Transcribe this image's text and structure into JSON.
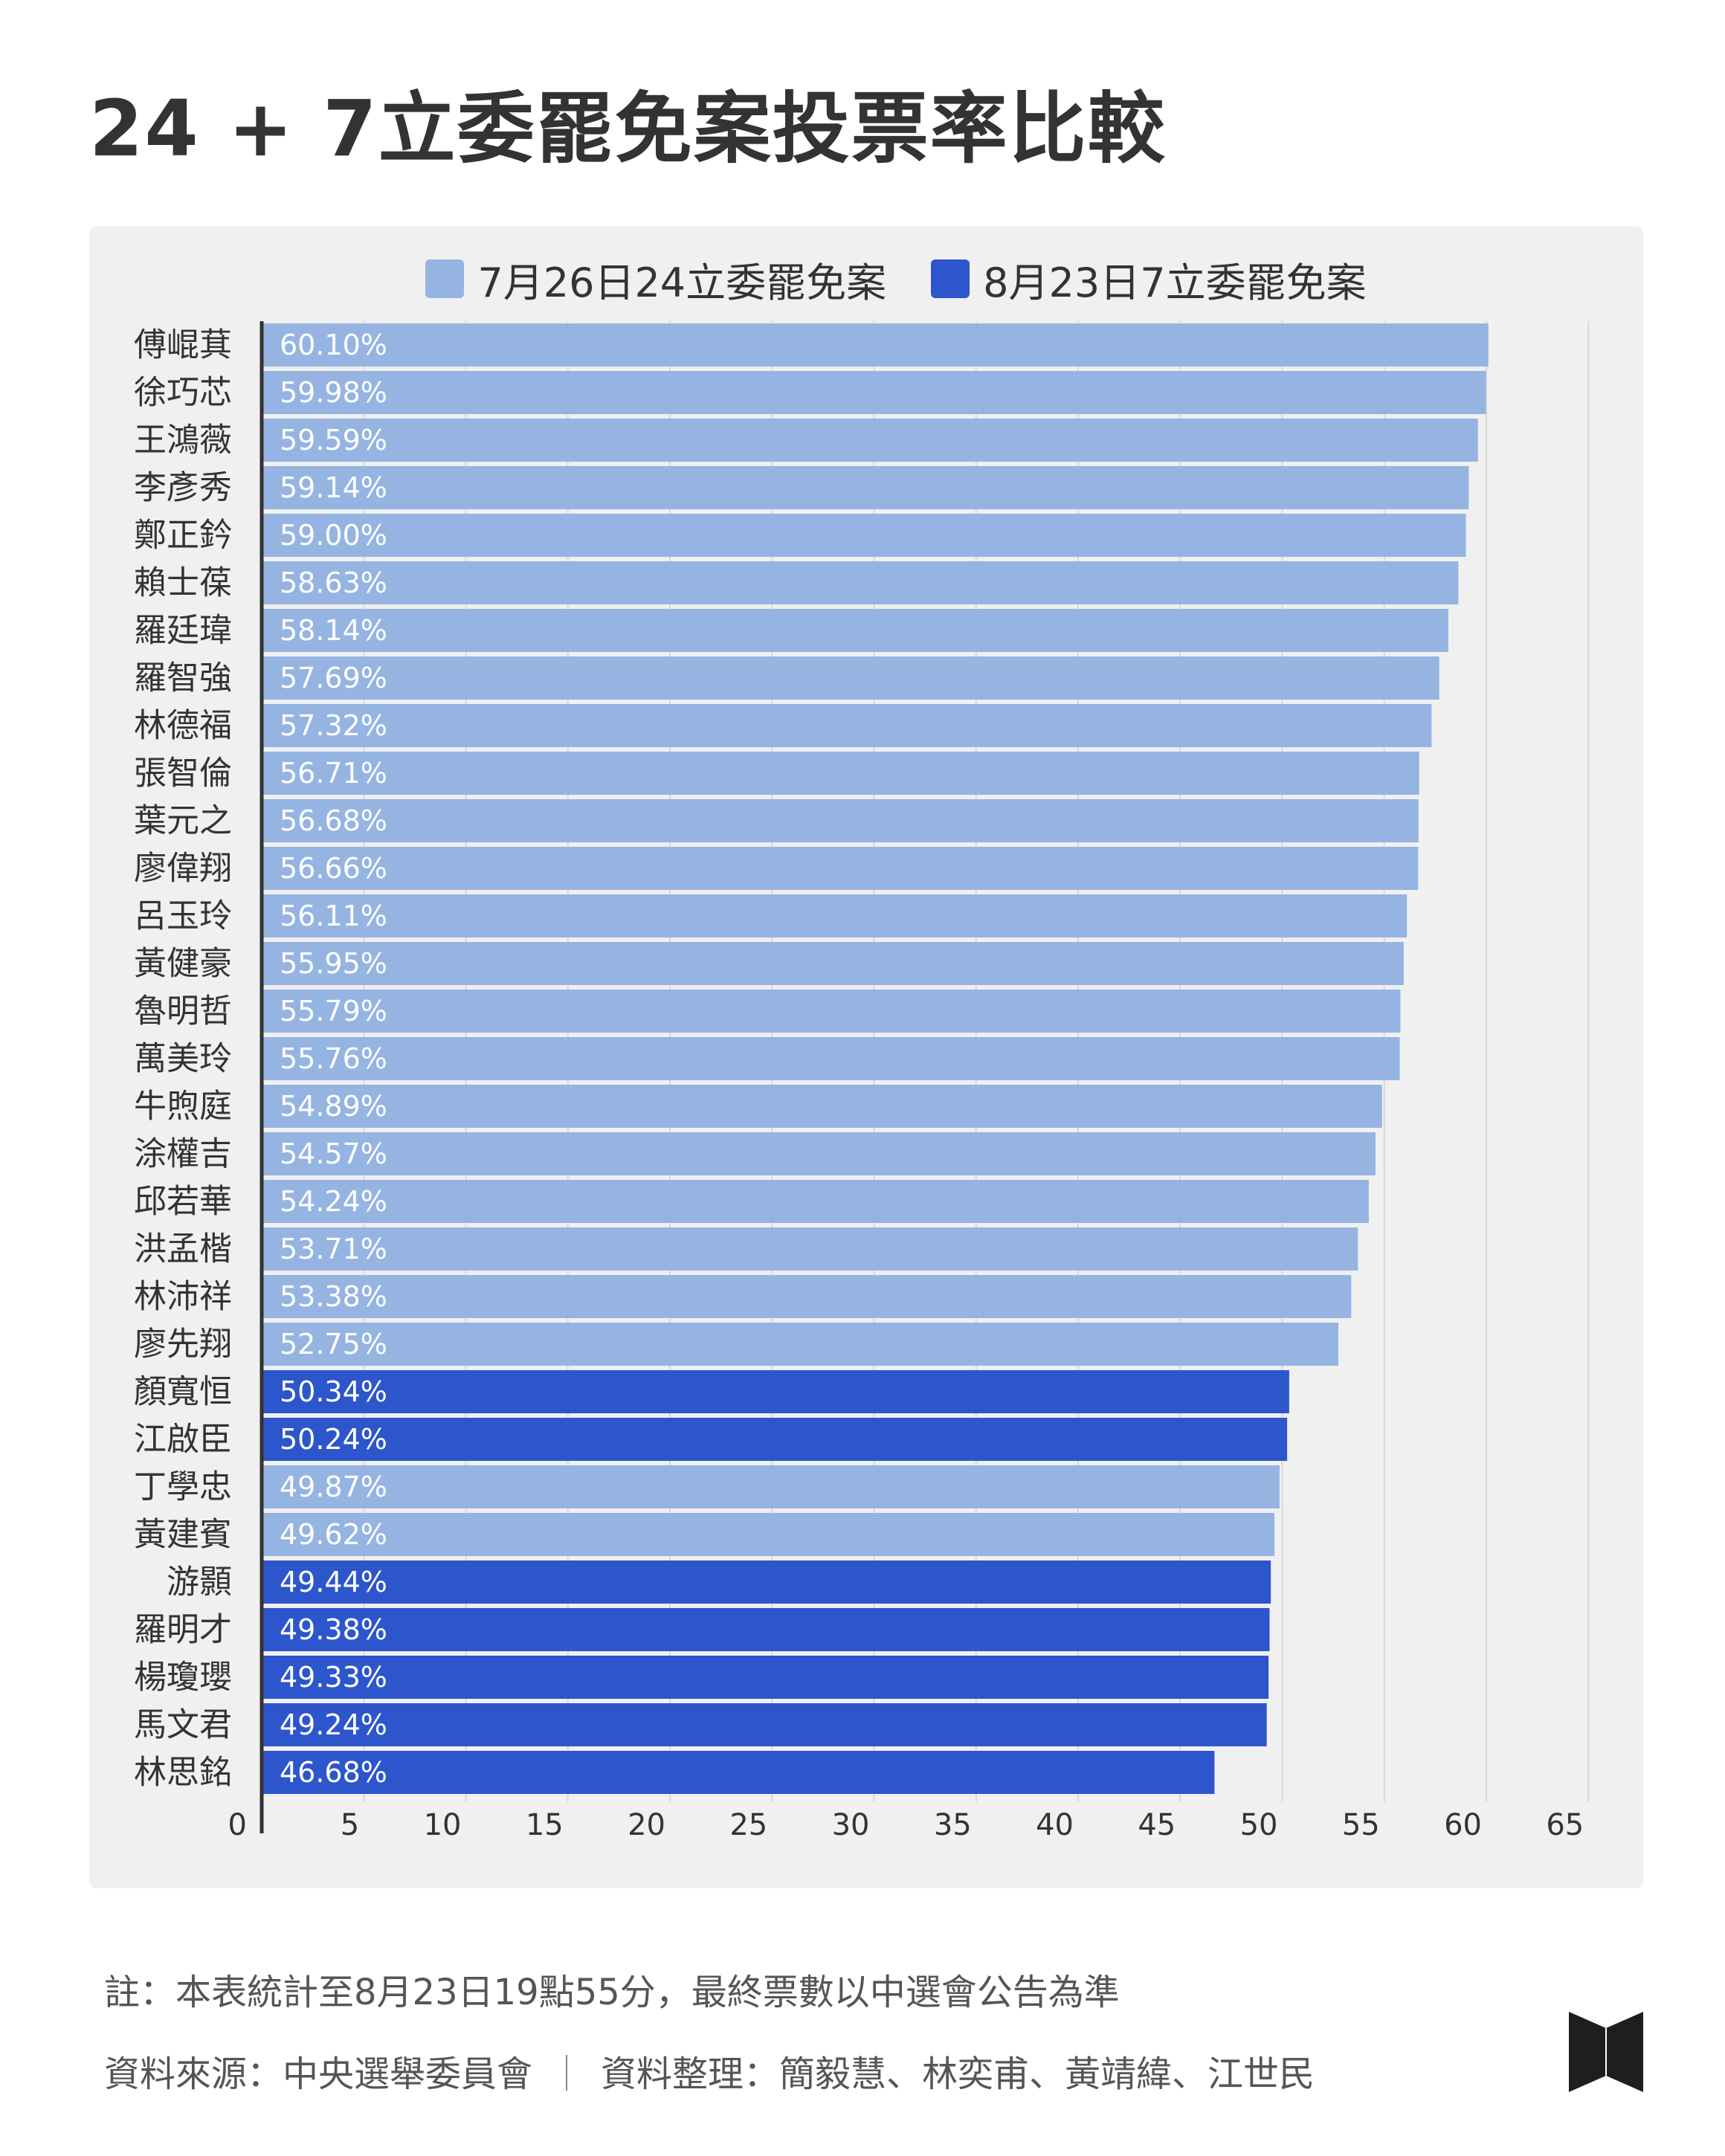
{
  "page": {
    "title": "24 + 7立委罷免案投票率比較",
    "footer": {
      "note": "註：本表統計至8月23日19點55分，最終票數以中選會公告為準",
      "source": "資料來源：中央選舉委員會",
      "separator": "｜",
      "compiled": "資料整理：簡毅慧、林奕甫、黃靖緯、江世民"
    }
  },
  "chart_data": {
    "type": "bar",
    "orientation": "horizontal",
    "xlim": [
      0,
      65
    ],
    "x_ticks": [
      "0",
      "5",
      "10",
      "15",
      "20",
      "25",
      "30",
      "35",
      "40",
      "45",
      "50",
      "55",
      "60",
      "65"
    ],
    "grid": true,
    "legend_position": "top",
    "colors": {
      "jul26": "#95b4e2",
      "aug23": "#2d55cc",
      "axis": "#333333",
      "grid": "#d8d8d8"
    },
    "series": [
      {
        "key": "jul26",
        "name": "7月26日24立委罷免案"
      },
      {
        "key": "aug23",
        "name": "8月23日7立委罷免案"
      }
    ],
    "categories": [
      "傅崐萁",
      "徐巧芯",
      "王鴻薇",
      "李彥秀",
      "鄭正鈐",
      "賴士葆",
      "羅廷瑋",
      "羅智強",
      "林德福",
      "張智倫",
      "葉元之",
      "廖偉翔",
      "呂玉玲",
      "黃健豪",
      "魯明哲",
      "萬美玲",
      "牛煦庭",
      "涂權吉",
      "邱若華",
      "洪孟楷",
      "林沛祥",
      "廖先翔",
      "顏寬恒",
      "江啟臣",
      "丁學忠",
      "黃建賓",
      "游顥",
      "羅明才",
      "楊瓊瓔",
      "馬文君",
      "林思銘"
    ],
    "values": [
      60.1,
      59.98,
      59.59,
      59.14,
      59.0,
      58.63,
      58.14,
      57.69,
      57.32,
      56.71,
      56.68,
      56.66,
      56.11,
      55.95,
      55.79,
      55.76,
      54.89,
      54.57,
      54.24,
      53.71,
      53.38,
      52.75,
      50.34,
      50.24,
      49.87,
      49.62,
      49.44,
      49.38,
      49.33,
      49.24,
      46.68
    ],
    "value_labels": [
      "60.10%",
      "59.98%",
      "59.59%",
      "59.14%",
      "59.00%",
      "58.63%",
      "58.14%",
      "57.69%",
      "57.32%",
      "56.71%",
      "56.68%",
      "56.66%",
      "56.11%",
      "55.95%",
      "55.79%",
      "55.76%",
      "54.89%",
      "54.57%",
      "54.24%",
      "53.71%",
      "53.38%",
      "52.75%",
      "50.34%",
      "50.24%",
      "49.87%",
      "49.62%",
      "49.44%",
      "49.38%",
      "49.33%",
      "49.24%",
      "46.68%"
    ],
    "group": [
      "jul26",
      "jul26",
      "jul26",
      "jul26",
      "jul26",
      "jul26",
      "jul26",
      "jul26",
      "jul26",
      "jul26",
      "jul26",
      "jul26",
      "jul26",
      "jul26",
      "jul26",
      "jul26",
      "jul26",
      "jul26",
      "jul26",
      "jul26",
      "jul26",
      "jul26",
      "aug23",
      "aug23",
      "jul26",
      "jul26",
      "aug23",
      "aug23",
      "aug23",
      "aug23",
      "aug23"
    ]
  }
}
